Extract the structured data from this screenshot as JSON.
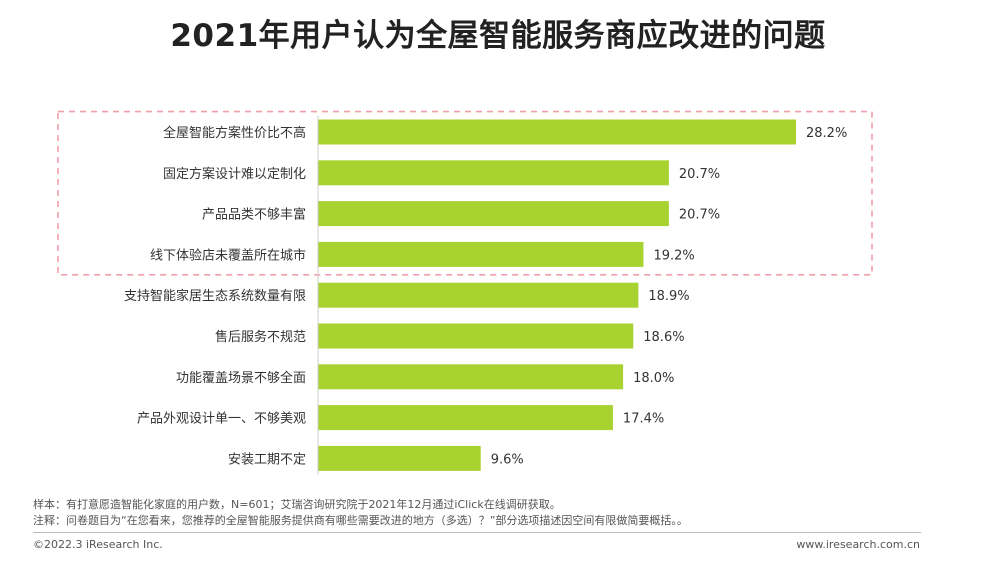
{
  "chart_data": {
    "type": "bar",
    "orientation": "horizontal",
    "title": "2021年用户认为全屋智能服务商应改进的问题",
    "categories": [
      "全屋智能方案性价比不高",
      "固定方案设计难以定制化",
      "产品品类不够丰富",
      "线下体验店未覆盖所在城市",
      "支持智能家居生态系统数量有限",
      "售后服务不规范",
      "功能覆盖场景不够全面",
      "产品外观设计单一、不够美观",
      "安装工期不定"
    ],
    "values": [
      28.2,
      20.7,
      20.7,
      19.2,
      18.9,
      18.6,
      18.0,
      17.4,
      9.6
    ],
    "value_labels": [
      "28.2%",
      "20.7%",
      "20.7%",
      "19.2%",
      "18.9%",
      "18.6%",
      "18.0%",
      "17.4%",
      "9.6%"
    ],
    "xlim": [
      0,
      28.2
    ],
    "highlighted_count": 4,
    "bar_color": "#a8d230",
    "highlight_border_color": "#f0a0a8",
    "xlabel": "",
    "ylabel": ""
  },
  "notes": {
    "sample": "样本：有打意愿造智能化家庭的用户数，N=601；艾瑞咨询研究院于2021年12月通过iClick在线调研获取。",
    "comment": "注释：问卷题目为“在您看来，您推荐的全屋智能服务提供商有哪些需要改进的地方（多选）？”部分选项描述因空间有限做简要概括。。"
  },
  "footer": {
    "copyright": "©2022.3 iResearch Inc.",
    "website": "www.iresearch.com.cn"
  }
}
